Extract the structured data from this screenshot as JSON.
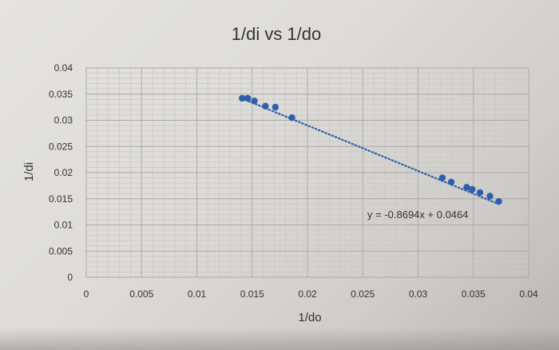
{
  "chart_data": {
    "type": "scatter",
    "title": "1/di vs 1/do",
    "xlabel": "1/do",
    "ylabel": "1/di",
    "xlim": [
      0,
      0.04
    ],
    "ylim": [
      0,
      0.04
    ],
    "x_ticks": [
      "0",
      "0.005",
      "0.01",
      "0.015",
      "0.02",
      "0.025",
      "0.03",
      "0.035",
      "0.04"
    ],
    "y_ticks": [
      "0",
      "0.005",
      "0.01",
      "0.015",
      "0.02",
      "0.025",
      "0.03",
      "0.035",
      "0.04"
    ],
    "grid": true,
    "marker_color": "#2f5fa8",
    "points": [
      {
        "x": 0.0141,
        "y": 0.0342
      },
      {
        "x": 0.0146,
        "y": 0.0342
      },
      {
        "x": 0.0152,
        "y": 0.0337
      },
      {
        "x": 0.0162,
        "y": 0.0327
      },
      {
        "x": 0.0171,
        "y": 0.0325
      },
      {
        "x": 0.0186,
        "y": 0.0305
      },
      {
        "x": 0.0322,
        "y": 0.019
      },
      {
        "x": 0.033,
        "y": 0.0182
      },
      {
        "x": 0.0344,
        "y": 0.0172
      },
      {
        "x": 0.0349,
        "y": 0.0168
      },
      {
        "x": 0.0356,
        "y": 0.0162
      },
      {
        "x": 0.0365,
        "y": 0.0155
      },
      {
        "x": 0.0373,
        "y": 0.0145
      }
    ],
    "trendline": {
      "type": "linear",
      "slope": -0.8694,
      "intercept": 0.0464,
      "x_range": [
        0.0141,
        0.0373
      ],
      "style": "dotted",
      "equation": "y = -0.8694x + 0.0464"
    }
  }
}
